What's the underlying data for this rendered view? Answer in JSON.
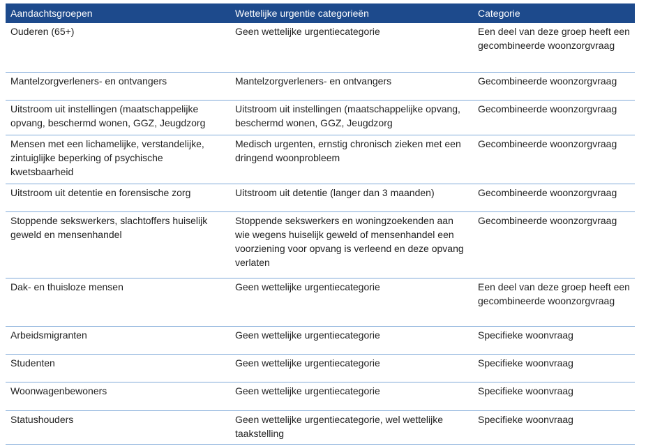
{
  "table": {
    "headers": [
      "Aandachtsgroepen",
      "Wettelijke urgentie categorieën",
      "Categorie"
    ],
    "rows": [
      [
        "Ouderen (65+)",
        "Geen wettelijke urgentiecategorie",
        "Een deel van deze groep heeft een gecombineerde woonzorgvraag"
      ],
      [
        "Mantelzorgverleners- en ontvangers",
        "Mantelzorgverleners- en ontvangers",
        "Gecombineerde woonzorgvraag"
      ],
      [
        "Uitstroom uit instellingen (maatschappelijke opvang, beschermd wonen, GGZ, Jeugdzorg",
        "Uitstroom uit instellingen (maatschappelijke opvang, beschermd wonen, GGZ, Jeugdzorg",
        "Gecombineerde woonzorgvraag"
      ],
      [
        "Mensen met een lichamelijke, verstandelijke, zintuiglijke beperking of psychische kwetsbaarheid",
        "Medisch urgenten, ernstig chronisch zieken met een dringend woonprobleem",
        "Gecombineerde woonzorgvraag"
      ],
      [
        "Uitstroom uit detentie en forensische zorg",
        "Uitstroom uit detentie (langer dan 3 maanden)",
        "Gecombineerde woonzorgvraag"
      ],
      [
        "Stoppende sekswerkers, slachtoffers huiselijk geweld en mensenhandel",
        "Stoppende sekswerkers en woningzoekenden aan wie wegens huiselijk geweld of mensenhandel een voorziening voor opvang is verleend en deze opvang verlaten",
        "Gecombineerde woonzorgvraag"
      ],
      [
        "Dak- en thuisloze mensen",
        "Geen wettelijke urgentiecategorie",
        "Een deel van deze groep heeft een gecombineerde woonzorgvraag"
      ],
      [
        "Arbeidsmigranten",
        "Geen wettelijke urgentiecategorie",
        "Specifieke woonvraag"
      ],
      [
        "Studenten",
        "Geen wettelijke urgentiecategorie",
        "Specifieke woonvraag"
      ],
      [
        "Woonwagenbewoners",
        "Geen wettelijke urgentiecategorie",
        "Specifieke woonvraag"
      ],
      [
        "Statushouders",
        "Geen wettelijke urgentiecategorie, wel wettelijke taakstelling",
        "Specifieke woonvraag"
      ]
    ]
  }
}
